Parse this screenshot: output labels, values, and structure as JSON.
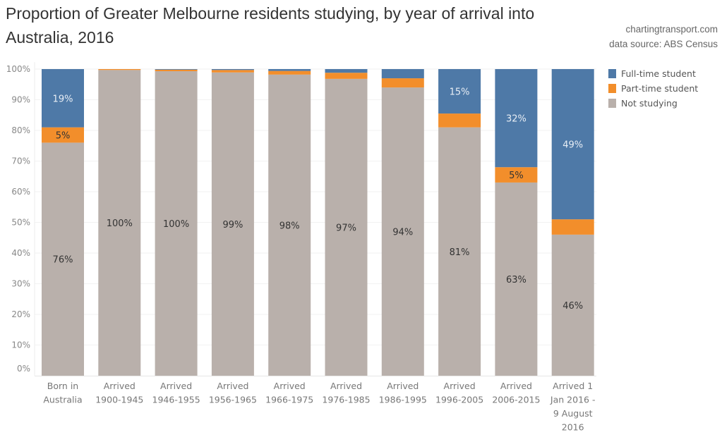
{
  "chart_data": {
    "type": "bar",
    "stacked": true,
    "title": "Proportion of Greater Melbourne residents studying, by year of arrival into Australia, 2016",
    "credits": [
      "chartingtransport.com",
      "data source: ABS Census"
    ],
    "xlabel": "",
    "ylabel": "",
    "ylim": [
      0,
      100
    ],
    "y_ticks": [
      "0%",
      "10%",
      "20%",
      "30%",
      "40%",
      "50%",
      "60%",
      "70%",
      "80%",
      "90%",
      "100%"
    ],
    "grid": true,
    "legend_position": "right-top",
    "categories": [
      [
        "Born in",
        "Australia"
      ],
      [
        "Arrived",
        "1900-1945"
      ],
      [
        "Arrived",
        "1946-1955"
      ],
      [
        "Arrived",
        "1956-1965"
      ],
      [
        "Arrived",
        "1966-1975"
      ],
      [
        "Arrived",
        "1976-1985"
      ],
      [
        "Arrived",
        "1986-1995"
      ],
      [
        "Arrived",
        "1996-2005"
      ],
      [
        "Arrived",
        "2006-2015"
      ],
      [
        "Arrived 1",
        "Jan 2016 -",
        "9 August",
        "2016"
      ]
    ],
    "series": [
      {
        "name": "Not studying",
        "color": "#b9b0ab",
        "label_color": "#333333",
        "values": [
          76,
          100,
          100,
          99,
          98,
          97,
          94,
          81,
          63,
          46
        ],
        "labels": [
          "76%",
          "100%",
          "100%",
          "99%",
          "98%",
          "97%",
          "94%",
          "81%",
          "63%",
          "46%"
        ]
      },
      {
        "name": "Part-time student",
        "color": "#f28e2b",
        "label_color": "#333333",
        "values": [
          5,
          0.3,
          0.5,
          0.8,
          1.2,
          2,
          3,
          4.5,
          5,
          5
        ],
        "labels": [
          "5%",
          "",
          "",
          "",
          "",
          "",
          "",
          "",
          "5%",
          ""
        ]
      },
      {
        "name": "Full-time student",
        "color": "#4e79a7",
        "label_color": "#e8eef5",
        "values": [
          19,
          0,
          0.2,
          0.3,
          0.6,
          1.2,
          3,
          14.5,
          32,
          49
        ],
        "labels": [
          "19%",
          "",
          "",
          "",
          "",
          "",
          "",
          "15%",
          "32%",
          "49%"
        ]
      }
    ],
    "legend": [
      {
        "name": "Full-time student",
        "color": "#4e79a7"
      },
      {
        "name": "Part-time student",
        "color": "#f28e2b"
      },
      {
        "name": "Not studying",
        "color": "#b9b0ab"
      }
    ]
  }
}
